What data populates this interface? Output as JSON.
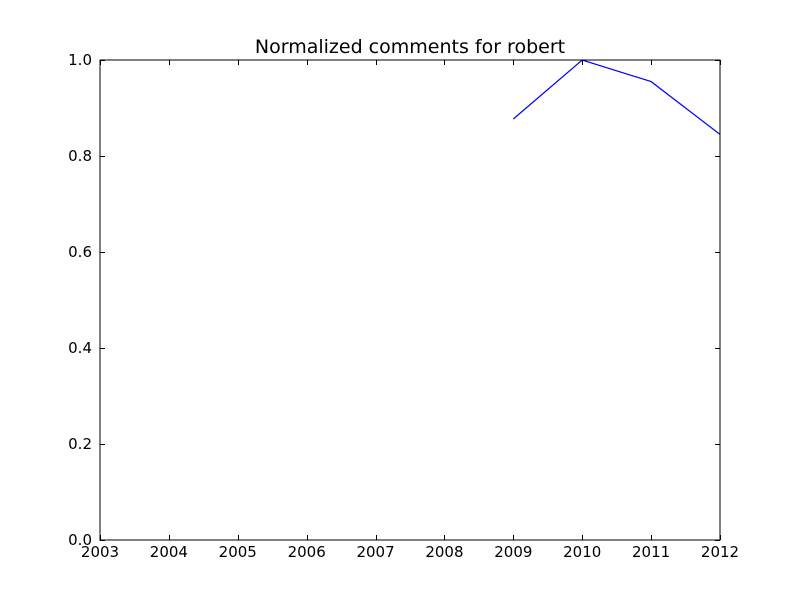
{
  "chart_data": {
    "type": "line",
    "title": "Normalized comments for robert",
    "xlabel": "",
    "ylabel": "",
    "xlim": [
      2003,
      2012
    ],
    "ylim": [
      0.0,
      1.0
    ],
    "x_ticks": [
      "2003",
      "2004",
      "2005",
      "2006",
      "2007",
      "2008",
      "2009",
      "2010",
      "2011",
      "2012"
    ],
    "y_ticks": [
      "0.0",
      "0.2",
      "0.4",
      "0.6",
      "0.8",
      "1.0"
    ],
    "grid": false,
    "legend": "none",
    "series": [
      {
        "color": "#0000ff",
        "x": [
          2009,
          2010,
          2011,
          2012
        ],
        "y": [
          0.877,
          1.0,
          0.955,
          0.845
        ]
      }
    ]
  }
}
